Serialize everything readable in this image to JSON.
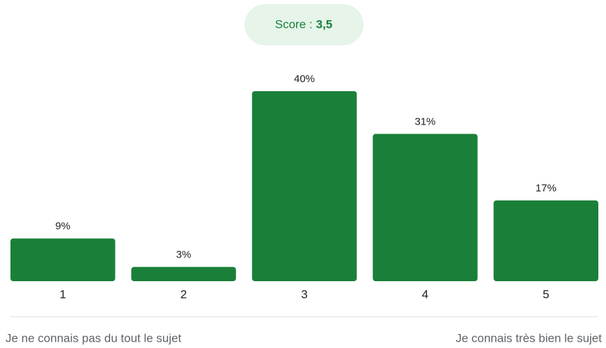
{
  "chart_data": {
    "type": "bar",
    "score_label": "Score :",
    "score_value": "3,5",
    "categories": [
      "1",
      "2",
      "3",
      "4",
      "5"
    ],
    "values": [
      9,
      3,
      40,
      31,
      17
    ],
    "value_labels": [
      "9%",
      "3%",
      "40%",
      "31%",
      "17%"
    ],
    "color": "#1a8039",
    "min_label": "Je ne connais pas du tout le sujet",
    "max_label": "Je connais très bien le sujet"
  }
}
